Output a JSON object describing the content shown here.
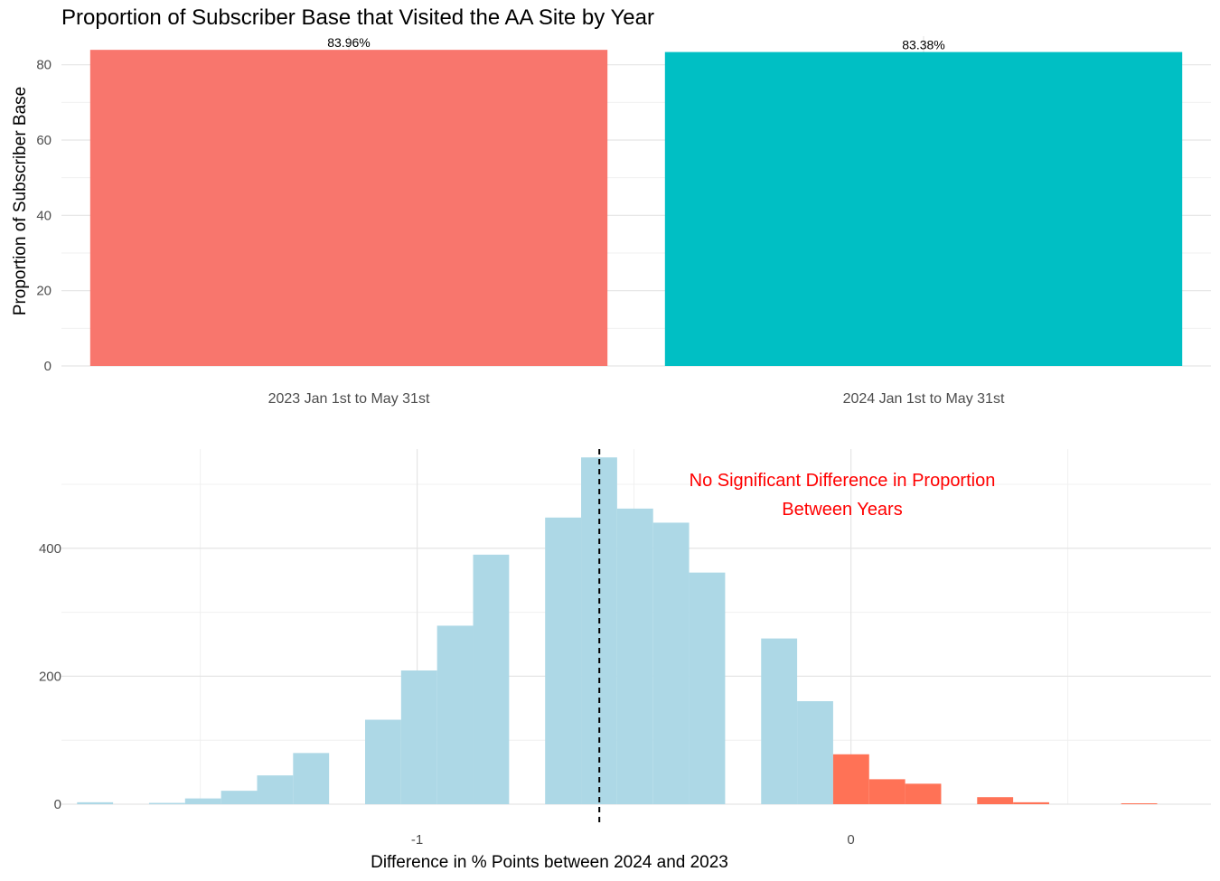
{
  "title": "Proportion of Subscriber Base that Visited the AA Site by Year",
  "chart_data": [
    {
      "type": "bar",
      "ylabel": "Proportion of Subscriber Base",
      "xlabel": "",
      "categories": [
        "2023 Jan 1st to May 31st",
        "2024 Jan 1st to May 31st"
      ],
      "values": [
        83.96,
        83.38
      ],
      "data_labels": [
        "83.96%",
        "83.38%"
      ],
      "colors": [
        "#F8766D",
        "#00BFC4"
      ],
      "ylim": [
        0,
        87.6
      ],
      "yticks": [
        0,
        20,
        40,
        60,
        80
      ],
      "grid": true,
      "legend": "none"
    },
    {
      "type": "bar",
      "subtype": "histogram",
      "xlabel": "Difference in % Points between 2024 and 2023",
      "ylabel": "",
      "xlim": [
        -1.82,
        0.83
      ],
      "ylim": [
        0,
        555
      ],
      "xticks": [
        -1,
        0
      ],
      "yticks": [
        0,
        200,
        400
      ],
      "grid": true,
      "bin_width": 0.083,
      "bins": [
        {
          "x0": -1.784,
          "x1": -1.701,
          "count": 3,
          "color": "#ADD8E6"
        },
        {
          "x0": -1.618,
          "x1": -1.535,
          "count": 2,
          "color": "#ADD8E6"
        },
        {
          "x0": -1.535,
          "x1": -1.452,
          "count": 9,
          "color": "#ADD8E6"
        },
        {
          "x0": -1.452,
          "x1": -1.369,
          "count": 21,
          "color": "#ADD8E6"
        },
        {
          "x0": -1.369,
          "x1": -1.286,
          "count": 45,
          "color": "#ADD8E6"
        },
        {
          "x0": -1.286,
          "x1": -1.203,
          "count": 80,
          "color": "#ADD8E6"
        },
        {
          "x0": -1.12,
          "x1": -1.037,
          "count": 132,
          "color": "#ADD8E6"
        },
        {
          "x0": -1.037,
          "x1": -0.954,
          "count": 209,
          "color": "#ADD8E6"
        },
        {
          "x0": -0.954,
          "x1": -0.871,
          "count": 279,
          "color": "#ADD8E6"
        },
        {
          "x0": -0.871,
          "x1": -0.788,
          "count": 390,
          "color": "#ADD8E6"
        },
        {
          "x0": -0.705,
          "x1": -0.622,
          "count": 448,
          "color": "#ADD8E6"
        },
        {
          "x0": -0.622,
          "x1": -0.539,
          "count": 542,
          "color": "#ADD8E6"
        },
        {
          "x0": -0.539,
          "x1": -0.456,
          "count": 462,
          "color": "#ADD8E6"
        },
        {
          "x0": -0.456,
          "x1": -0.373,
          "count": 440,
          "color": "#ADD8E6"
        },
        {
          "x0": -0.373,
          "x1": -0.29,
          "count": 362,
          "color": "#ADD8E6"
        },
        {
          "x0": -0.207,
          "x1": -0.124,
          "count": 259,
          "color": "#ADD8E6"
        },
        {
          "x0": -0.124,
          "x1": -0.041,
          "count": 161,
          "color": "#ADD8E6"
        },
        {
          "x0": -0.041,
          "x1": 0.042,
          "count": 78,
          "color": "#FF7256"
        },
        {
          "x0": 0.042,
          "x1": 0.125,
          "count": 39,
          "color": "#FF7256"
        },
        {
          "x0": 0.125,
          "x1": 0.208,
          "count": 32,
          "color": "#FF7256"
        },
        {
          "x0": 0.291,
          "x1": 0.374,
          "count": 11,
          "color": "#FF7256"
        },
        {
          "x0": 0.374,
          "x1": 0.457,
          "count": 3,
          "color": "#FF7256"
        },
        {
          "x0": 0.623,
          "x1": 0.706,
          "count": 1,
          "color": "#FF7256"
        }
      ],
      "reference_line": {
        "x": -0.58,
        "style": "dashed",
        "color": "#000000"
      },
      "annotation": {
        "lines": [
          "No Significant Difference in Proportion",
          "Between Years"
        ],
        "color": "#FF0000",
        "x": -0.02
      }
    }
  ]
}
